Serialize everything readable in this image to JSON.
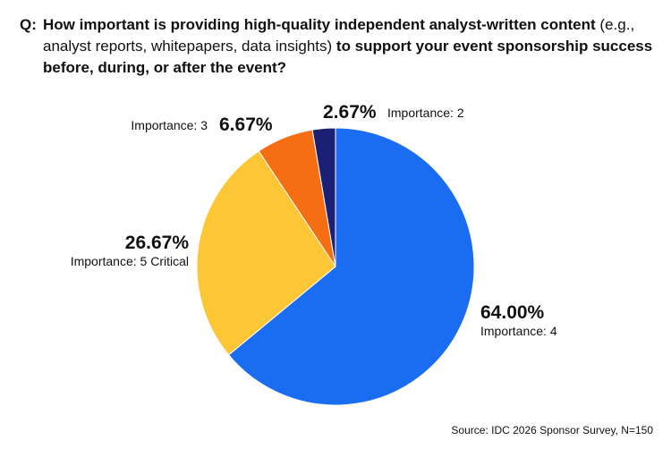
{
  "question": {
    "prefix": "Q:",
    "part1": "How important is providing high-quality independent analyst-written content",
    "part2": "(e.g., analyst reports, whitepapers, data insights)",
    "part3": "to support your event sponsorship success before, during, or after the event?"
  },
  "source": "Source: IDC 2026 Sponsor Survey, N=150",
  "chart_data": {
    "type": "pie",
    "start_angle_deg": 0,
    "direction": "clockwise",
    "slices": [
      {
        "label": "Importance: 4",
        "value": 64.0,
        "value_label": "64.00%",
        "color": "#1a6cf0"
      },
      {
        "label": "Importance: 5 Critical",
        "value": 26.67,
        "value_label": "26.67%",
        "color": "#fdc634"
      },
      {
        "label": "Importance: 3",
        "value": 6.67,
        "value_label": "6.67%",
        "color": "#f56e14"
      },
      {
        "label": "Importance: 2",
        "value": 2.67,
        "value_label": "2.67%",
        "color": "#1c2074"
      }
    ]
  }
}
